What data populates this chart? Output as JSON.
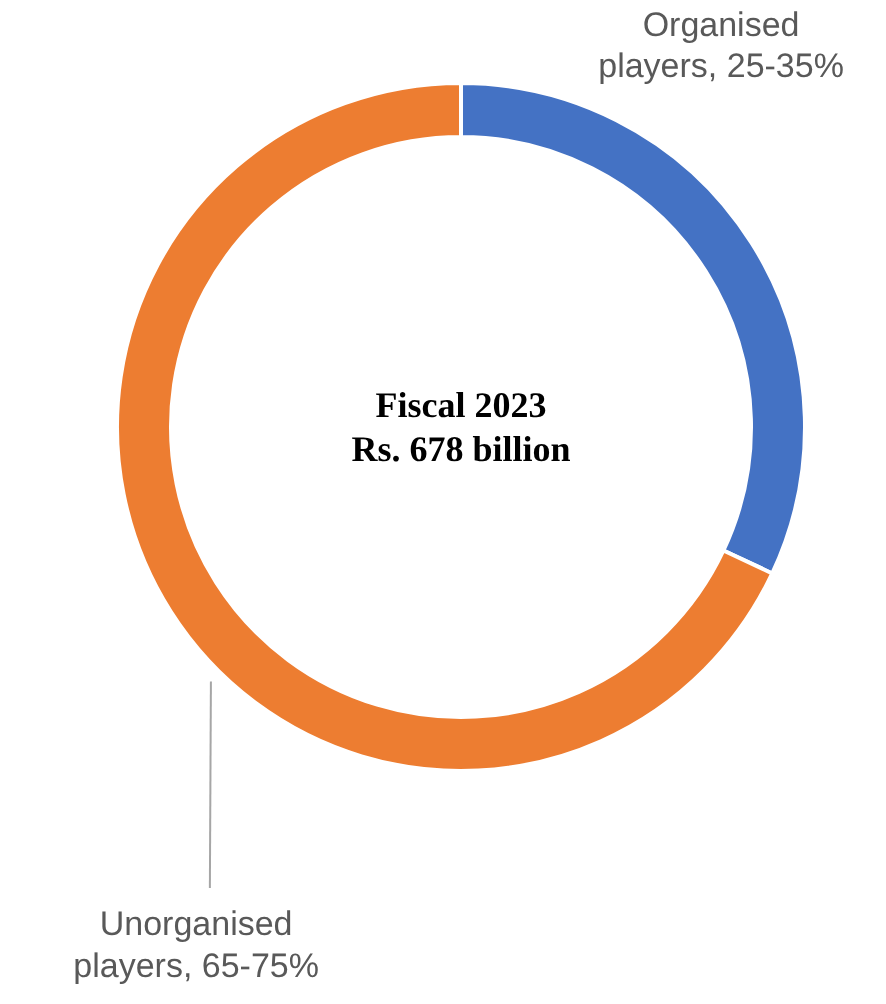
{
  "chart_data": {
    "type": "donut",
    "categories": [
      "Organised players, 25-35%",
      "Unorganised players, 65-75%"
    ],
    "values": [
      32,
      68
    ],
    "colors": [
      "#4472c4",
      "#ed7d31"
    ],
    "annotations": [
      "Fiscal 2023",
      "Rs. 678 billion"
    ]
  }
}
